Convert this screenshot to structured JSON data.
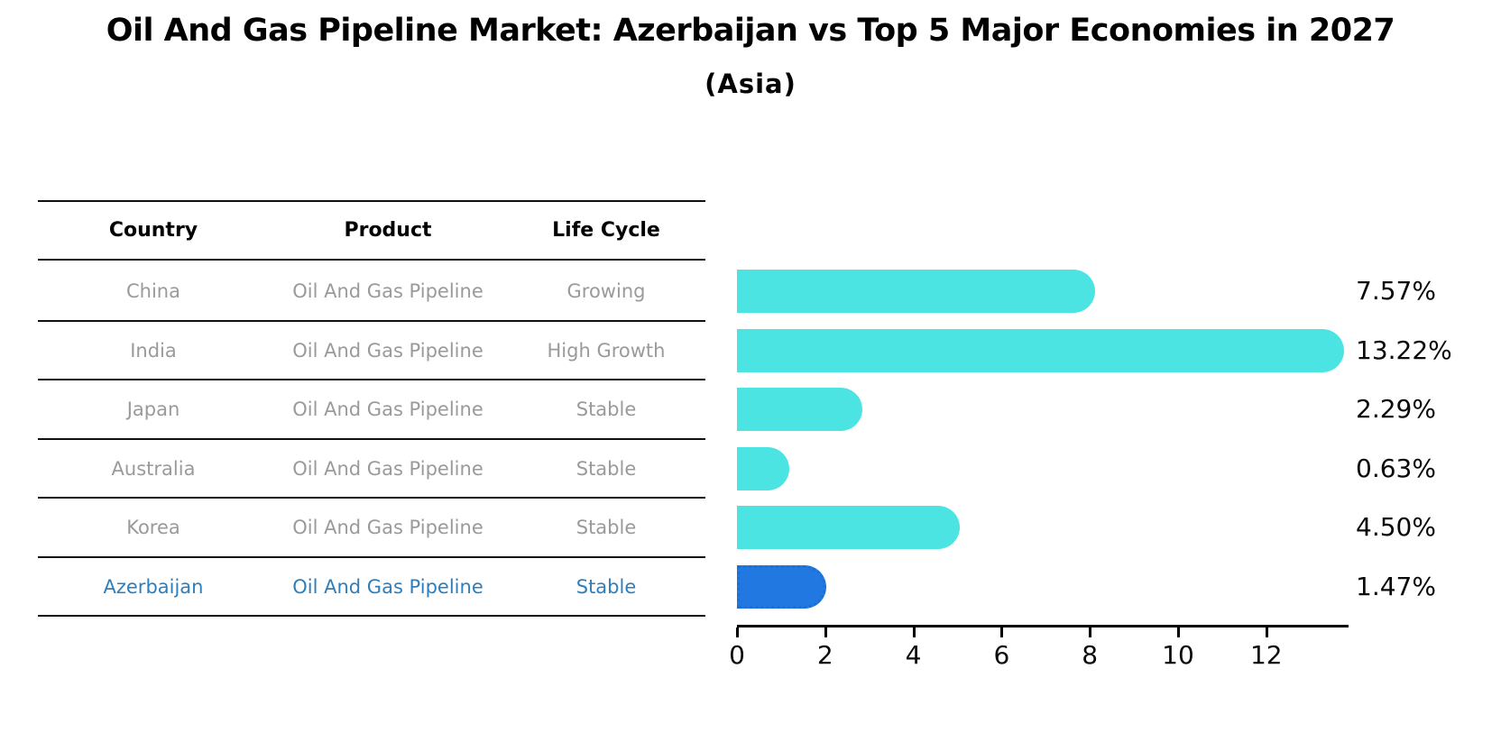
{
  "header": {
    "title": "Oil And Gas Pipeline Market: Azerbaijan vs Top 5 Major Economies in 2027",
    "subtitle": "(Asia)"
  },
  "table": {
    "columns": {
      "country": "Country",
      "product": "Product",
      "life_cycle": "Life Cycle"
    },
    "rows": [
      {
        "country": "China",
        "product": "Oil And Gas Pipeline",
        "life_cycle": "Growing",
        "value_label": "7.57%"
      },
      {
        "country": "India",
        "product": "Oil And Gas Pipeline",
        "life_cycle": "High Growth",
        "value_label": "13.22%"
      },
      {
        "country": "Japan",
        "product": "Oil And Gas Pipeline",
        "life_cycle": "Stable",
        "value_label": "2.29%"
      },
      {
        "country": "Australia",
        "product": "Oil And Gas Pipeline",
        "life_cycle": "Stable",
        "value_label": "0.63%"
      },
      {
        "country": "Korea",
        "product": "Oil And Gas Pipeline",
        "life_cycle": "Stable",
        "value_label": "4.50%"
      },
      {
        "country": "Azerbaijan",
        "product": "Oil And Gas Pipeline",
        "life_cycle": "Stable",
        "value_label": "1.47%"
      }
    ]
  },
  "chart_data": {
    "type": "bar",
    "orientation": "horizontal",
    "title": "Oil And Gas Pipeline Market: Azerbaijan vs Top 5 Major Economies in 2027",
    "subtitle": "(Asia)",
    "categories": [
      "China",
      "India",
      "Japan",
      "Australia",
      "Korea",
      "Azerbaijan"
    ],
    "values": [
      7.57,
      13.22,
      2.29,
      0.63,
      4.5,
      1.47
    ],
    "value_labels": [
      "7.57%",
      "13.22%",
      "2.29%",
      "0.63%",
      "4.50%",
      "1.47%"
    ],
    "xlabel": "",
    "ylabel": "",
    "xlim": [
      0,
      13.87
    ],
    "xticks": [
      0,
      2,
      4,
      6,
      8,
      10,
      12
    ],
    "grid": false,
    "legend": "none",
    "bar_color": "#4be4e2",
    "highlight_color": "#2178e0",
    "highlight_text_color": "#2e7ebc",
    "highlight_index": 5,
    "highlight_edge_style": "dotted"
  }
}
